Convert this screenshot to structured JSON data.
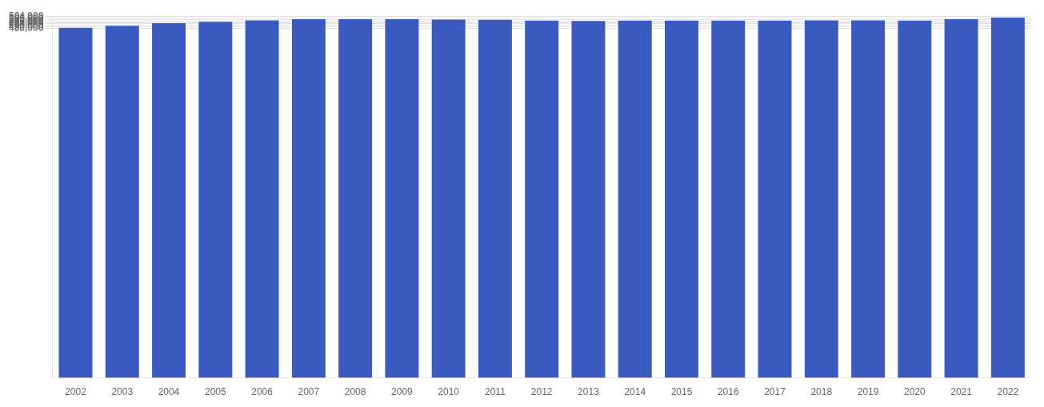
{
  "chart_data": {
    "type": "bar",
    "categories": [
      "2002",
      "2003",
      "2004",
      "2005",
      "2006",
      "2007",
      "2008",
      "2009",
      "2010",
      "2011",
      "2012",
      "2013",
      "2014",
      "2015",
      "2016",
      "2017",
      "2018",
      "2019",
      "2020",
      "2021",
      "2022"
    ],
    "values": [
      488600,
      491300,
      495100,
      497000,
      498900,
      500600,
      500600,
      500500,
      500100,
      499700,
      498600,
      498100,
      498500,
      498700,
      498600,
      498700,
      498800,
      499000,
      498500,
      500500,
      502700
    ],
    "color": "#3a5abf",
    "ylim": [
      0,
      504800
    ],
    "yticks": [
      {
        "value": 488000,
        "label": "488,000"
      },
      {
        "value": 490000,
        "label": "490,000"
      },
      {
        "value": 492000,
        "label": "492,000"
      },
      {
        "value": 494000,
        "label": "494,000"
      },
      {
        "value": 496000,
        "label": "496,000"
      },
      {
        "value": 498000,
        "label": "498,000"
      },
      {
        "value": 500000,
        "label": "500,000"
      },
      {
        "value": 502000,
        "label": "502,000"
      },
      {
        "value": 504000,
        "label": "504,000"
      }
    ],
    "grid": true
  }
}
